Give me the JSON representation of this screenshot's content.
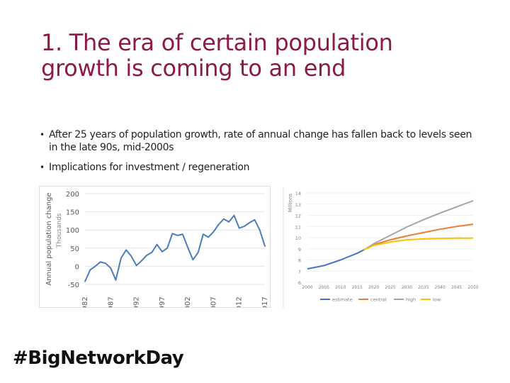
{
  "slide": {
    "title_line1": "1. The era of certain population",
    "title_line2": "growth is coming to an end",
    "title_color": "#8b1a4a",
    "bullets": [
      "After 25 years of population growth, rate of annual change has fallen back to levels seen in the late 90s, mid-2000s",
      "Implications for investment / regeneration"
    ],
    "hashtag": "#Big​Network​Day"
  },
  "chart_data": [
    {
      "type": "line",
      "title": "",
      "ylabel": "Annual population change",
      "ylabel_sub": "Thousands",
      "xlabel": "",
      "ylim": [
        -50,
        200
      ],
      "yticks": [
        "200",
        "150",
        "100",
        "50",
        "0",
        "-50"
      ],
      "ytick_values": [
        200,
        150,
        100,
        50,
        0,
        -50
      ],
      "xticks": [
        "1982",
        "1987",
        "1992",
        "1997",
        "2002",
        "2007",
        "2012",
        "2017"
      ],
      "xtick_values": [
        1982,
        1987,
        1992,
        1997,
        2002,
        2007,
        2012,
        2017
      ],
      "grid": true,
      "color": "#4a7ebb",
      "x": [
        1982,
        1983,
        1984,
        1985,
        1986,
        1987,
        1988,
        1989,
        1990,
        1991,
        1992,
        1993,
        1994,
        1995,
        1996,
        1997,
        1998,
        1999,
        2000,
        2001,
        2002,
        2003,
        2004,
        2005,
        2006,
        2007,
        2008,
        2009,
        2010,
        2011,
        2012,
        2013,
        2014,
        2015,
        2016,
        2017
      ],
      "values": [
        -42,
        -10,
        0,
        12,
        8,
        -5,
        -38,
        22,
        45,
        28,
        2,
        15,
        30,
        38,
        60,
        40,
        50,
        90,
        85,
        88,
        52,
        18,
        38,
        88,
        80,
        95,
        115,
        130,
        122,
        140,
        105,
        110,
        120,
        128,
        100,
        55
      ]
    },
    {
      "type": "line",
      "title": "",
      "ylabel": "Millions",
      "xlabel": "",
      "ylim": [
        6,
        14
      ],
      "yticks": [
        "14",
        "13",
        "12",
        "11",
        "10",
        "9",
        "8",
        "7",
        "6"
      ],
      "ytick_values": [
        14,
        13,
        12,
        11,
        10,
        9,
        8,
        7,
        6
      ],
      "xticks": [
        "2000",
        "2005",
        "2010",
        "2015",
        "2020",
        "2025",
        "2030",
        "2035",
        "2040",
        "2045",
        "2050"
      ],
      "xtick_values": [
        2000,
        2005,
        2010,
        2015,
        2020,
        2025,
        2030,
        2035,
        2040,
        2045,
        2050
      ],
      "legend": [
        "estimate",
        "central",
        "high",
        "low"
      ],
      "legend_position": "bottom",
      "series": [
        {
          "name": "estimate",
          "color": "#4472c4",
          "x": [
            2000,
            2005,
            2010,
            2015,
            2017
          ],
          "values": [
            7.2,
            7.5,
            8.0,
            8.6,
            8.9
          ]
        },
        {
          "name": "central",
          "color": "#ed7d31",
          "x": [
            2017,
            2020,
            2025,
            2030,
            2035,
            2040,
            2045,
            2050
          ],
          "values": [
            8.9,
            9.35,
            9.8,
            10.15,
            10.45,
            10.75,
            11.0,
            11.2
          ]
        },
        {
          "name": "high",
          "color": "#a5a5a5",
          "x": [
            2017,
            2020,
            2025,
            2030,
            2035,
            2040,
            2045,
            2050
          ],
          "values": [
            8.9,
            9.45,
            10.2,
            10.95,
            11.6,
            12.2,
            12.75,
            13.3
          ]
        },
        {
          "name": "low",
          "color": "#ffc000",
          "x": [
            2017,
            2020,
            2025,
            2030,
            2035,
            2040,
            2045,
            2050
          ],
          "values": [
            8.9,
            9.3,
            9.6,
            9.8,
            9.88,
            9.92,
            9.95,
            9.95
          ]
        }
      ]
    }
  ]
}
